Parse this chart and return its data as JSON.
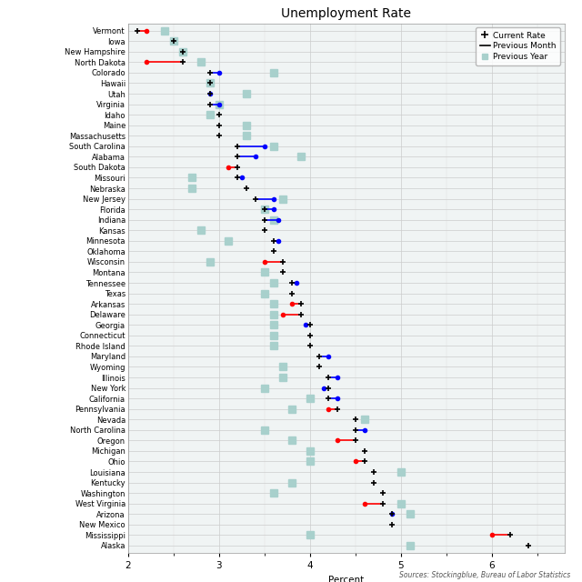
{
  "title": "Unemployment Rate",
  "xlabel": "Percent",
  "source": "Sources: Stockingblue, Bureau of Labor Statistics",
  "xlim": [
    2.0,
    6.8
  ],
  "xticks": [
    2,
    3,
    4,
    5,
    6
  ],
  "states": [
    "Vermont",
    "Iowa",
    "New Hampshire",
    "North Dakota",
    "Colorado",
    "Hawaii",
    "Utah",
    "Virginia",
    "Idaho",
    "Maine",
    "Massachusetts",
    "South Carolina",
    "Alabama",
    "South Dakota",
    "Missouri",
    "Nebraska",
    "New Jersey",
    "Florida",
    "Indiana",
    "Kansas",
    "Minnesota",
    "Oklahoma",
    "Wisconsin",
    "Montana",
    "Tennessee",
    "Texas",
    "Arkansas",
    "Delaware",
    "Georgia",
    "Connecticut",
    "Rhode Island",
    "Maryland",
    "Wyoming",
    "Illinois",
    "New York",
    "California",
    "Pennsylvania",
    "Nevada",
    "North Carolina",
    "Oregon",
    "Michigan",
    "Ohio",
    "Louisiana",
    "Kentucky",
    "Washington",
    "West Virginia",
    "Arizona",
    "New Mexico",
    "Mississippi",
    "Alaska"
  ],
  "current_rate": [
    2.1,
    2.5,
    2.6,
    2.6,
    2.9,
    2.9,
    2.9,
    2.9,
    3.0,
    3.0,
    3.0,
    3.2,
    3.2,
    3.2,
    3.2,
    3.3,
    3.4,
    3.5,
    3.5,
    3.5,
    3.6,
    3.6,
    3.7,
    3.7,
    3.8,
    3.8,
    3.9,
    3.9,
    4.0,
    4.0,
    4.0,
    4.1,
    4.1,
    4.2,
    4.2,
    4.2,
    4.3,
    4.5,
    4.5,
    4.5,
    4.6,
    4.6,
    4.7,
    4.7,
    4.8,
    4.8,
    4.9,
    4.9,
    6.2,
    6.4
  ],
  "prev_month_end": [
    2.2,
    null,
    null,
    2.2,
    3.0,
    null,
    2.9,
    3.0,
    null,
    null,
    null,
    3.5,
    3.4,
    3.1,
    3.25,
    null,
    3.6,
    3.6,
    3.65,
    null,
    3.65,
    null,
    3.5,
    null,
    3.85,
    null,
    3.8,
    3.7,
    3.95,
    null,
    null,
    4.2,
    null,
    4.3,
    4.15,
    4.3,
    4.2,
    null,
    4.6,
    4.3,
    null,
    4.5,
    null,
    null,
    null,
    4.6,
    4.9,
    null,
    6.0,
    null
  ],
  "prev_month_color": [
    "red",
    null,
    null,
    "red",
    "blue",
    null,
    "blue",
    "blue",
    null,
    null,
    null,
    "blue",
    "blue",
    "red",
    "blue",
    null,
    "blue",
    "blue",
    "blue",
    null,
    "blue",
    null,
    "red",
    null,
    "blue",
    null,
    "red",
    "red",
    "blue",
    null,
    null,
    "blue",
    null,
    "blue",
    "blue",
    "blue",
    "red",
    null,
    "blue",
    "red",
    null,
    "red",
    null,
    null,
    null,
    "red",
    "blue",
    null,
    "red",
    null
  ],
  "prev_year": [
    2.4,
    2.5,
    2.6,
    2.8,
    3.6,
    2.9,
    3.3,
    3.0,
    2.9,
    3.3,
    3.3,
    3.6,
    3.9,
    null,
    2.7,
    2.7,
    3.7,
    3.5,
    3.6,
    2.8,
    3.1,
    null,
    2.9,
    3.5,
    3.6,
    3.5,
    3.6,
    3.6,
    3.6,
    3.6,
    3.6,
    null,
    3.7,
    3.7,
    3.5,
    4.0,
    3.8,
    4.6,
    3.5,
    3.8,
    4.0,
    4.0,
    5.0,
    3.8,
    3.6,
    5.0,
    5.1,
    null,
    4.0,
    5.1
  ],
  "bg_color": "#ffffff",
  "plot_bg_color": "#f0f4f4",
  "grid_color": "#cccccc",
  "prev_year_color": "#a8d0cc",
  "marker_size_current": 4.5,
  "marker_size_year": 6,
  "line_width": 1.2,
  "dot_size": 3.0,
  "label_fontsize": 6.0,
  "tick_fontsize": 7.5,
  "title_fontsize": 10,
  "legend_fontsize": 6.5,
  "source_fontsize": 5.5
}
